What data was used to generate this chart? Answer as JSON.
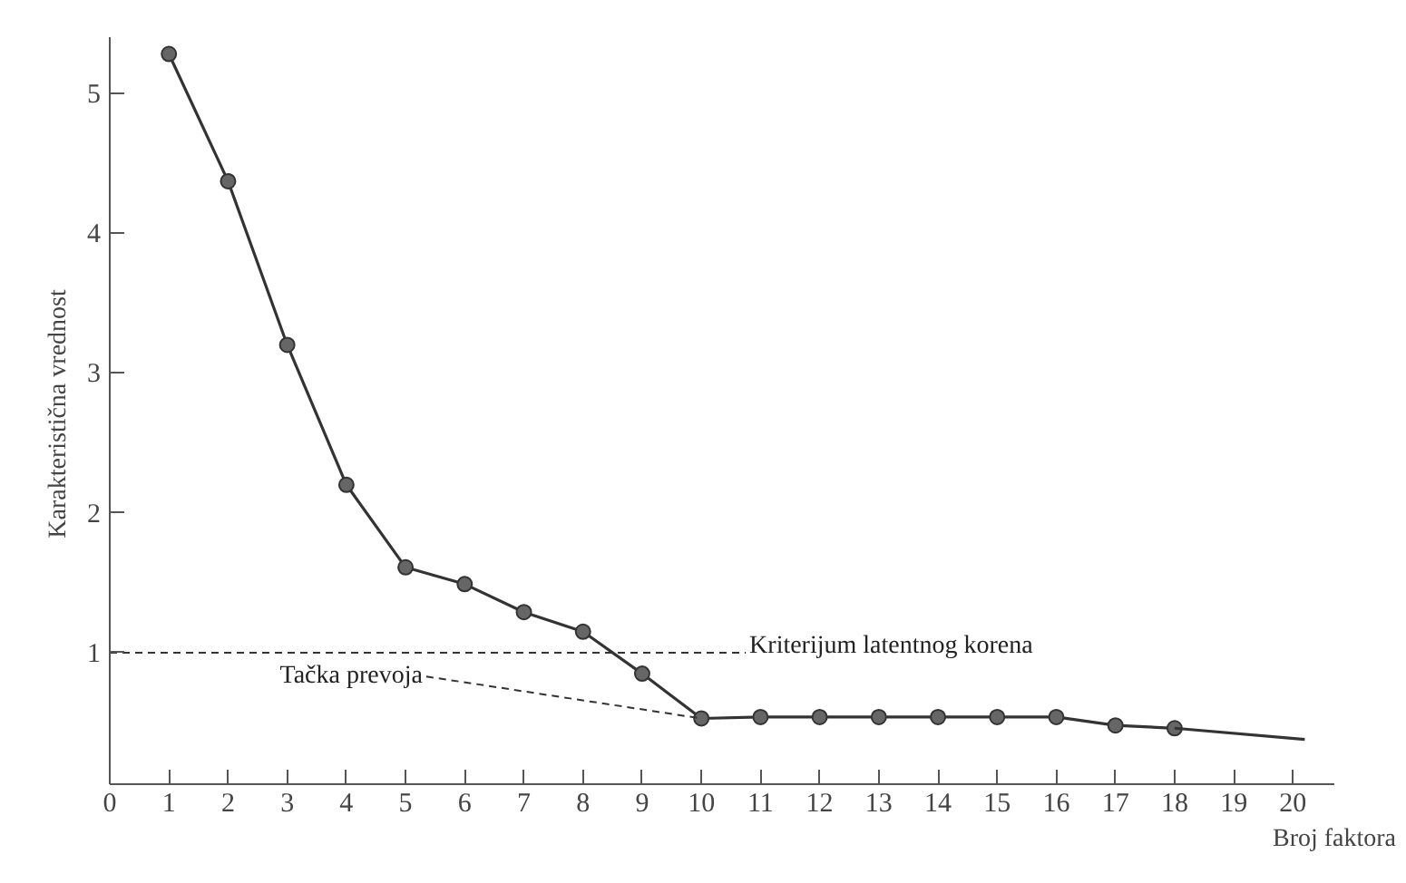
{
  "chart_data": {
    "type": "line",
    "xlabel": "Broj faktora",
    "ylabel": "Karakteristična  vrednost",
    "xlim": [
      0,
      20.7
    ],
    "ylim": [
      0.06,
      5.4
    ],
    "xticks": [
      0,
      1,
      2,
      3,
      4,
      5,
      6,
      7,
      8,
      9,
      10,
      11,
      12,
      13,
      14,
      15,
      16,
      17,
      18,
      19,
      20
    ],
    "yticks": [
      1,
      2,
      3,
      4,
      5
    ],
    "series": [
      {
        "color": "#333333",
        "marker": "circle",
        "x": [
          1,
          2,
          3,
          4,
          5,
          6,
          7,
          8,
          9,
          10,
          11,
          12,
          13,
          14,
          15,
          16,
          17,
          18
        ],
        "values": [
          5.28,
          4.37,
          3.2,
          2.2,
          1.61,
          1.49,
          1.29,
          1.15,
          0.85,
          0.53,
          0.54,
          0.54,
          0.54,
          0.54,
          0.54,
          0.54,
          0.48,
          0.46
        ]
      },
      {
        "color": "#333333",
        "marker": "none",
        "x": [
          18,
          20.2
        ],
        "values": [
          0.46,
          0.38
        ]
      }
    ],
    "ref_lines": [
      {
        "axis": "y",
        "value": 1,
        "label": "Kriterijum latentnog korena",
        "line_style": "dashed",
        "color": "#333333"
      }
    ],
    "annotations": [
      {
        "text": "Tačka prevoja",
        "x": 10,
        "y": 0.53
      }
    ],
    "line_style": "solid"
  }
}
